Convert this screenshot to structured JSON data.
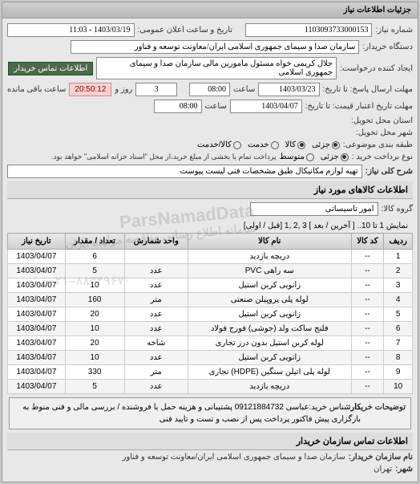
{
  "header": {
    "title": "جزئیات اطلاعات نیاز"
  },
  "info": {
    "need_no_label": "شماره نیاز:",
    "need_no": "1103093733000153",
    "announce_label": "تاریخ و ساعت اعلان عمومی:",
    "announce_value": "1403/03/19 - 11:03",
    "buyer_label": "دستگاه خریدار:",
    "buyer_value": "سازمان صدا و سیمای جمهوری اسلامی ایران/معاونت توسعه و فناور",
    "requester_label": "ایجاد کننده درخواست:",
    "requester_value": "جلال کریمی خواه مسئول مامورین مالی   سازمان صدا و سیمای جمهوری اسلامی",
    "contact_btn": "اطلاعات تماس خریدار",
    "deadline_label": "مهلت ارسال پاسخ: تا تاریخ:",
    "deadline_date": "1403/03/23",
    "time_label": "ساعت",
    "deadline_time": "08:00",
    "days_label": "روز و",
    "days_value": "3",
    "remain_label": "ساعت باقی مانده",
    "remain_value": "20:50:12",
    "validity_label": "مهلت تاریخ اعتبار قیمت: تا تاریخ:",
    "validity_date": "1403/04/07",
    "validity_time": "08:00",
    "province_label": "استان محل تحویل:",
    "city_label": "شهر محل تحویل:",
    "pkg_label": "طبقه بندی موضوعی:",
    "pkg_r1": "جزئی",
    "pkg_r2": "کالا",
    "pkg_r3": "خدمت",
    "pkg_r4": "کالا/خدمت",
    "pay_label": "نوع برداخت خرید :",
    "pay_r1": "جزئی",
    "pay_r2": "متوسط",
    "pay_note": "پرداخت تمام یا بخشی از مبلغ خرید،از محل \"اسناد خزانه اسلامی\" خواهد بود.",
    "desc_label": "شرح کلی نیاز:",
    "desc_value": "تهیه لوازم مکانیکال طبق مشخصات فنی لیست پیوست"
  },
  "goods": {
    "section_title": "اطلاعات کالاهای مورد نیاز",
    "group_label": "گروه کالا:",
    "group_value": "امور تاسیساتی",
    "pager_text": "نمایش 1 تا 10.. [ آخرین / بعد ] 3 ,2 ,1 [قبل / اولی]",
    "headers": [
      "ردیف",
      "کد کالا",
      "نام کالا",
      "واحد شمارش",
      "تعداد / مقدار",
      "تاریخ نیاز"
    ],
    "rows": [
      [
        "1",
        "--",
        "دریچه بازدید",
        "",
        "6",
        "1403/04/07"
      ],
      [
        "2",
        "--",
        "سه راهی PVC",
        "عدد",
        "5",
        "1403/04/07"
      ],
      [
        "3",
        "--",
        "زانویی کربن استیل",
        "عدد",
        "10",
        "1403/04/07"
      ],
      [
        "4",
        "--",
        "لوله پلی پروپیلن صنعتی",
        "متر",
        "160",
        "1403/04/07"
      ],
      [
        "5",
        "--",
        "زانویی کربن استیل",
        "عدد",
        "20",
        "1403/04/07"
      ],
      [
        "6",
        "--",
        "فلنج ساکت ولد (جوشی) فورج فولاد",
        "عدد",
        "10",
        "1403/04/07"
      ],
      [
        "7",
        "--",
        "لوله کربن استیل بدون درز تجاری",
        "شاخه",
        "20",
        "1403/04/07"
      ],
      [
        "8",
        "--",
        "زانویی کربن استیل",
        "عدد",
        "10",
        "1403/04/07"
      ],
      [
        "9",
        "--",
        "لوله پلی اتیلن سنگین (HDPE) تجاری",
        "متر",
        "330",
        "1403/04/07"
      ],
      [
        "10",
        "--",
        "دریچه بازدید",
        "عدد",
        "5",
        "1403/04/07"
      ]
    ]
  },
  "footer": {
    "explain_label": "توضیحات خریدار:",
    "explain_value": "کارشناس خرید:عباسی 09121884732 پشتیبانی و هزینه حمل با فروشنده / بررسی مالی و فنی منوط به بارگزاری پیش فاکتور پرداخت پس از نصب و تست و تایید فنی",
    "contact_title": "اطلاعات تماس سازمان خریدار",
    "org_label": "نام سازمان خریدار:",
    "org_value": "سازمان صدا و سیمای جمهوری اسلامی ایران/معاونت توسعه و فناور",
    "city2_label": "شهر:",
    "city2_value": "تهران"
  },
  "watermark": {
    "line1": "ParsNamadData",
    "line2": "سامانه اطلاع رسانی مناقصه مزایده ایران",
    "line3": "۰۲۱–۸۸۳۴۹۶۷۰"
  }
}
